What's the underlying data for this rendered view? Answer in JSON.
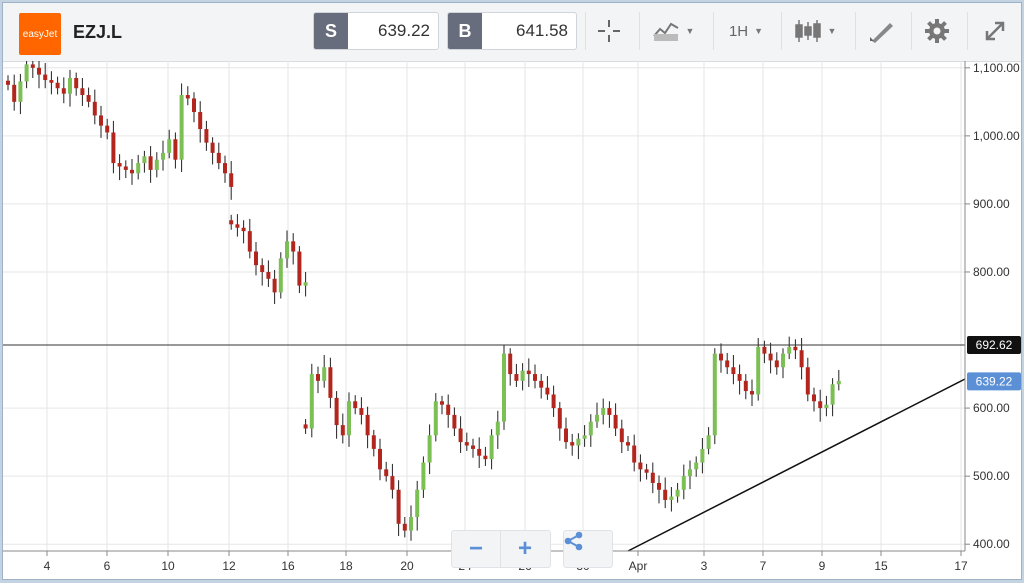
{
  "toolbar": {
    "logo_text": "easyJet",
    "ticker": "EZJ.L",
    "sell": {
      "label": "S",
      "value": "639.22"
    },
    "buy": {
      "label": "B",
      "value": "641.58"
    },
    "timeframe": "1H"
  },
  "zoom": {
    "minus": "−",
    "plus": "+"
  },
  "colors": {
    "up": "#7cbf55",
    "down": "#b3261e",
    "accent": "#5b8fd6"
  },
  "chart_data": {
    "type": "candlestick",
    "y_ticks": [
      "1,100.00",
      "1,000.00",
      "900.00",
      "800.00",
      "600.00",
      "500.00",
      "400.00"
    ],
    "y_tick_values": [
      1100,
      1000,
      900,
      800,
      600,
      500,
      400
    ],
    "ylim": [
      390,
      1110
    ],
    "x_ticks": [
      "4",
      "6",
      "10",
      "12",
      "16",
      "18",
      "20",
      "24",
      "26",
      "30",
      "Apr",
      "3",
      "7",
      "9",
      "15",
      "17"
    ],
    "levels": {
      "horizontal": "692.62",
      "current": "639.22"
    },
    "series": [
      {
        "segment": 1,
        "start_x": 0,
        "points": [
          1075,
          1050,
          1080,
          1105,
          1100,
          1090,
          1082,
          1078,
          1070,
          1062,
          1085,
          1070,
          1060,
          1050,
          1030,
          1015,
          1005,
          960,
          955,
          950,
          945,
          960,
          970,
          950,
          965,
          975,
          995,
          965,
          1060,
          1055,
          1035,
          1010,
          990,
          975,
          960,
          945,
          925
        ]
      },
      {
        "segment": 2,
        "start_x": 36,
        "points": [
          870,
          865,
          860,
          830,
          810,
          800,
          790,
          770,
          820,
          845,
          830,
          780,
          785
        ]
      },
      {
        "segment": 3,
        "start_x": 48,
        "points": [
          570,
          650,
          640,
          660,
          615,
          575,
          560,
          610,
          600,
          590,
          560,
          540,
          510,
          500,
          480,
          430,
          420,
          440,
          480,
          520,
          560,
          610,
          605,
          590,
          570,
          550,
          545,
          540,
          530,
          525,
          560,
          580,
          680,
          650,
          640,
          655,
          650,
          640,
          630,
          620,
          600,
          570,
          550,
          545,
          555,
          560,
          580,
          590,
          600,
          590,
          570,
          550,
          545,
          520,
          510,
          505,
          490,
          480,
          465,
          470,
          480,
          500,
          510,
          520,
          540,
          560,
          680,
          670,
          660,
          650,
          640,
          625,
          620,
          690,
          680,
          670,
          660,
          680,
          690,
          685,
          660,
          620,
          610,
          600,
          605,
          635,
          640
        ]
      }
    ]
  }
}
